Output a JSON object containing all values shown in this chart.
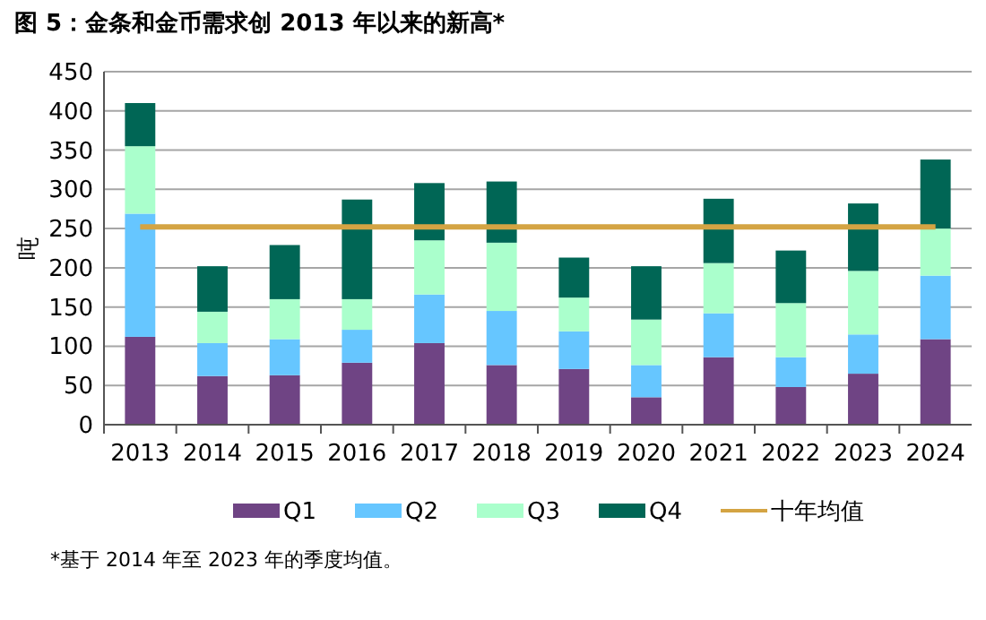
{
  "chart_data": {
    "type": "bar",
    "stacked": true,
    "title": "图 5：金条和金币需求创 2013 年以来的新高*",
    "ylabel": "吨",
    "categories": [
      "2013",
      "2014",
      "2015",
      "2016",
      "2017",
      "2018",
      "2019",
      "2020",
      "2021",
      "2022",
      "2023",
      "2024"
    ],
    "series": [
      {
        "name": "Q1",
        "color": "#6f4484",
        "values": [
          112,
          62,
          63,
          79,
          104,
          76,
          71,
          35,
          86,
          48,
          65,
          109
        ]
      },
      {
        "name": "Q2",
        "color": "#66c6ff",
        "values": [
          157,
          42,
          46,
          42,
          62,
          69,
          48,
          41,
          56,
          38,
          50,
          81
        ]
      },
      {
        "name": "Q3",
        "color": "#aaffcc",
        "values": [
          86,
          40,
          51,
          39,
          69,
          87,
          43,
          58,
          64,
          69,
          81,
          60
        ]
      },
      {
        "name": "Q4",
        "color": "#006655",
        "values": [
          55,
          58,
          69,
          127,
          73,
          78,
          51,
          68,
          82,
          67,
          86,
          88
        ]
      }
    ],
    "ref_lines": [
      {
        "axis": "y",
        "value": 252,
        "label": "十年均值",
        "color": "#d4a443"
      }
    ],
    "ylim": [
      0,
      450
    ],
    "yticks": [
      0,
      50,
      100,
      150,
      200,
      250,
      300,
      350,
      400,
      450
    ],
    "grid": "y",
    "legend": "bottom",
    "annotations": [
      "*基于 2014 年至 2023 年的季度均值。"
    ]
  }
}
